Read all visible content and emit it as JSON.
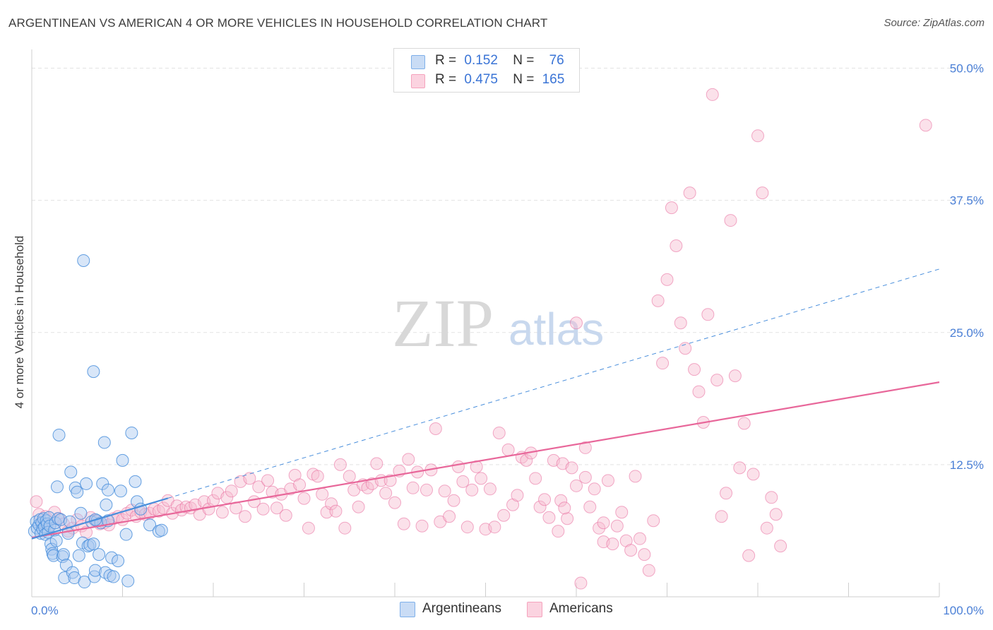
{
  "title": "ARGENTINEAN VS AMERICAN 4 OR MORE VEHICLES IN HOUSEHOLD CORRELATION CHART",
  "source": "Source: ZipAtlas.com",
  "watermark": {
    "zip": "ZIP",
    "atlas": "atlas"
  },
  "legend": {
    "rows": [
      {
        "r_label": "R =",
        "r_value": "0.152",
        "n_label": "N =",
        "n_value": "76",
        "color": "#7fb0ea"
      },
      {
        "r_label": "R =",
        "r_value": "0.475",
        "n_label": "N =",
        "n_value": "165",
        "color": "#f5a3bd"
      }
    ]
  },
  "bottom_legend": {
    "argentineans": "Argentineans",
    "americans": "Americans"
  },
  "chart_data": {
    "type": "scatter",
    "title": "ARGENTINEAN VS AMERICAN 4 OR MORE VEHICLES IN HOUSEHOLD CORRELATION CHART",
    "ylabel": "4 or more Vehicles in Household",
    "xlabel": "",
    "x_tick_labels": [
      "0.0%",
      "100.0%"
    ],
    "y_tick_labels": [
      "12.5%",
      "25.0%",
      "37.5%",
      "50.0%"
    ],
    "y_ticks": [
      12.5,
      25.0,
      37.5,
      50.0
    ],
    "xlim": [
      0,
      100
    ],
    "ylim": [
      0,
      52
    ],
    "grid": true,
    "legend_position": "top-center",
    "series": [
      {
        "name": "Argentineans",
        "color": "#4a8fdc",
        "fill": "#a9c8f0",
        "r": 0.152,
        "n": 76,
        "trend": {
          "x0": 0,
          "y0": 5.5,
          "x1": 100,
          "y1": 31.0,
          "solid_until_x": 15
        },
        "points": [
          [
            0.3,
            6.2
          ],
          [
            0.5,
            7.1
          ],
          [
            0.6,
            6.5
          ],
          [
            0.8,
            6.8
          ],
          [
            0.9,
            7.3
          ],
          [
            1.0,
            6.0
          ],
          [
            1.1,
            7.0
          ],
          [
            1.2,
            6.4
          ],
          [
            1.3,
            7.4
          ],
          [
            1.4,
            6.6
          ],
          [
            1.5,
            5.9
          ],
          [
            1.6,
            7.2
          ],
          [
            1.7,
            6.9
          ],
          [
            1.8,
            6.1
          ],
          [
            1.9,
            7.5
          ],
          [
            2.0,
            6.7
          ],
          [
            2.1,
            5.0
          ],
          [
            2.2,
            4.5
          ],
          [
            2.3,
            4.1
          ],
          [
            2.4,
            3.9
          ],
          [
            2.5,
            6.3
          ],
          [
            2.6,
            7.0
          ],
          [
            2.7,
            5.3
          ],
          [
            2.8,
            10.4
          ],
          [
            2.9,
            7.4
          ],
          [
            3.0,
            15.3
          ],
          [
            3.2,
            7.3
          ],
          [
            3.4,
            3.8
          ],
          [
            3.5,
            4.0
          ],
          [
            3.6,
            1.8
          ],
          [
            3.8,
            3.0
          ],
          [
            4.0,
            6.0
          ],
          [
            4.2,
            7.1
          ],
          [
            4.3,
            11.8
          ],
          [
            4.5,
            2.3
          ],
          [
            4.7,
            1.8
          ],
          [
            4.8,
            10.3
          ],
          [
            5.0,
            9.9
          ],
          [
            5.2,
            3.9
          ],
          [
            5.4,
            7.9
          ],
          [
            5.6,
            5.1
          ],
          [
            5.8,
            1.4
          ],
          [
            6.0,
            10.7
          ],
          [
            6.2,
            4.8
          ],
          [
            6.4,
            4.9
          ],
          [
            6.6,
            7.1
          ],
          [
            6.8,
            5.0
          ],
          [
            6.9,
            1.9
          ],
          [
            7.0,
            2.5
          ],
          [
            7.2,
            7.2
          ],
          [
            7.4,
            4.0
          ],
          [
            7.6,
            7.0
          ],
          [
            7.8,
            10.7
          ],
          [
            8.0,
            14.6
          ],
          [
            8.1,
            2.3
          ],
          [
            8.2,
            8.7
          ],
          [
            8.4,
            10.1
          ],
          [
            8.6,
            2.0
          ],
          [
            8.8,
            3.7
          ],
          [
            9.0,
            1.9
          ],
          [
            5.7,
            31.8
          ],
          [
            6.8,
            21.3
          ],
          [
            7.0,
            7.3
          ],
          [
            9.5,
            3.4
          ],
          [
            9.8,
            10.0
          ],
          [
            10.0,
            12.9
          ],
          [
            10.4,
            5.9
          ],
          [
            10.6,
            1.5
          ],
          [
            11.0,
            15.5
          ],
          [
            11.4,
            10.9
          ],
          [
            11.6,
            9.0
          ],
          [
            12.0,
            8.3
          ],
          [
            13.0,
            6.8
          ],
          [
            14.0,
            6.2
          ],
          [
            14.3,
            6.3
          ],
          [
            8.4,
            7.2
          ]
        ]
      },
      {
        "name": "Americans",
        "color": "#e8679a",
        "fill": "#f7bcd0",
        "r": 0.475,
        "n": 165,
        "trend": {
          "x0": 0,
          "y0": 5.6,
          "x1": 100,
          "y1": 20.3
        },
        "points": [
          [
            0.5,
            9.0
          ],
          [
            0.8,
            7.8
          ],
          [
            1.2,
            7.0
          ],
          [
            1.5,
            7.6
          ],
          [
            2.0,
            6.8
          ],
          [
            2.5,
            8.0
          ],
          [
            3.0,
            7.4
          ],
          [
            3.5,
            6.9
          ],
          [
            4.0,
            6.2
          ],
          [
            4.5,
            6.5
          ],
          [
            5.0,
            7.3
          ],
          [
            5.5,
            6.7
          ],
          [
            6.0,
            6.1
          ],
          [
            6.5,
            7.5
          ],
          [
            7.0,
            7.2
          ],
          [
            7.5,
            6.9
          ],
          [
            8.0,
            7.0
          ],
          [
            8.5,
            6.8
          ],
          [
            9.0,
            7.4
          ],
          [
            9.5,
            7.6
          ],
          [
            10.0,
            7.3
          ],
          [
            10.5,
            7.9
          ],
          [
            11.0,
            8.2
          ],
          [
            11.5,
            7.6
          ],
          [
            12.0,
            8.0
          ],
          [
            12.5,
            7.8
          ],
          [
            13.0,
            7.9
          ],
          [
            13.5,
            8.3
          ],
          [
            14.0,
            8.1
          ],
          [
            14.5,
            8.4
          ],
          [
            15.0,
            9.1
          ],
          [
            15.5,
            7.9
          ],
          [
            16.0,
            8.6
          ],
          [
            16.5,
            8.2
          ],
          [
            17.0,
            8.5
          ],
          [
            17.5,
            8.4
          ],
          [
            18.0,
            8.7
          ],
          [
            18.5,
            7.8
          ],
          [
            19.0,
            9.0
          ],
          [
            19.5,
            8.3
          ],
          [
            20.0,
            9.1
          ],
          [
            20.5,
            9.8
          ],
          [
            21.0,
            8.0
          ],
          [
            21.5,
            9.4
          ],
          [
            22.0,
            10.0
          ],
          [
            22.5,
            8.4
          ],
          [
            23.0,
            10.9
          ],
          [
            23.5,
            7.6
          ],
          [
            24.0,
            11.2
          ],
          [
            24.5,
            9.0
          ],
          [
            25.0,
            10.4
          ],
          [
            25.5,
            8.3
          ],
          [
            26.0,
            11.0
          ],
          [
            26.5,
            9.9
          ],
          [
            27.0,
            8.4
          ],
          [
            27.5,
            9.7
          ],
          [
            28.0,
            7.7
          ],
          [
            28.5,
            10.2
          ],
          [
            29.0,
            11.5
          ],
          [
            29.5,
            10.6
          ],
          [
            30.0,
            9.3
          ],
          [
            30.5,
            6.5
          ],
          [
            31.0,
            11.6
          ],
          [
            31.5,
            11.4
          ],
          [
            32.0,
            9.7
          ],
          [
            32.5,
            8.0
          ],
          [
            33.0,
            8.8
          ],
          [
            33.5,
            8.1
          ],
          [
            34.0,
            12.5
          ],
          [
            34.5,
            6.5
          ],
          [
            35.0,
            11.4
          ],
          [
            35.5,
            10.1
          ],
          [
            36.0,
            8.5
          ],
          [
            36.5,
            10.6
          ],
          [
            37.0,
            10.3
          ],
          [
            37.5,
            10.7
          ],
          [
            38.0,
            12.6
          ],
          [
            38.5,
            11.0
          ],
          [
            39.0,
            9.8
          ],
          [
            39.5,
            11.0
          ],
          [
            40.0,
            8.9
          ],
          [
            40.5,
            11.9
          ],
          [
            41.0,
            6.9
          ],
          [
            41.5,
            13.0
          ],
          [
            42.0,
            10.3
          ],
          [
            42.5,
            11.8
          ],
          [
            43.0,
            6.7
          ],
          [
            43.5,
            10.1
          ],
          [
            44.0,
            12.0
          ],
          [
            44.5,
            15.9
          ],
          [
            45.0,
            7.1
          ],
          [
            45.5,
            10.0
          ],
          [
            46.0,
            7.6
          ],
          [
            46.5,
            9.1
          ],
          [
            47.0,
            12.3
          ],
          [
            47.5,
            10.9
          ],
          [
            48.0,
            6.6
          ],
          [
            48.5,
            10.1
          ],
          [
            49.0,
            12.3
          ],
          [
            49.5,
            11.2
          ],
          [
            50.0,
            6.4
          ],
          [
            50.5,
            10.2
          ],
          [
            51.0,
            6.6
          ],
          [
            51.5,
            15.5
          ],
          [
            52.0,
            7.7
          ],
          [
            52.5,
            13.9
          ],
          [
            53.0,
            8.7
          ],
          [
            53.5,
            9.6
          ],
          [
            54.0,
            13.2
          ],
          [
            54.5,
            12.9
          ],
          [
            55.0,
            13.6
          ],
          [
            55.5,
            11.2
          ],
          [
            56.0,
            8.5
          ],
          [
            56.5,
            9.2
          ],
          [
            57.0,
            7.5
          ],
          [
            57.5,
            12.9
          ],
          [
            58.0,
            6.2
          ],
          [
            58.5,
            12.6
          ],
          [
            59.0,
            7.4
          ],
          [
            59.5,
            12.2
          ],
          [
            60.0,
            10.5
          ],
          [
            60.5,
            1.3
          ],
          [
            61.0,
            11.3
          ],
          [
            61.5,
            8.5
          ],
          [
            62.0,
            10.2
          ],
          [
            62.5,
            6.5
          ],
          [
            63.0,
            5.2
          ],
          [
            63.5,
            11.0
          ],
          [
            64.0,
            5.0
          ],
          [
            64.5,
            6.7
          ],
          [
            65.0,
            8.0
          ],
          [
            65.5,
            5.3
          ],
          [
            66.0,
            4.4
          ],
          [
            66.5,
            11.4
          ],
          [
            67.0,
            5.5
          ],
          [
            67.5,
            4.0
          ],
          [
            68.0,
            2.5
          ],
          [
            68.5,
            7.2
          ],
          [
            69.0,
            28.0
          ],
          [
            69.5,
            22.1
          ],
          [
            70.0,
            30.0
          ],
          [
            70.5,
            36.8
          ],
          [
            71.0,
            33.2
          ],
          [
            71.5,
            25.9
          ],
          [
            72.0,
            23.5
          ],
          [
            72.5,
            38.2
          ],
          [
            73.0,
            21.5
          ],
          [
            73.5,
            19.4
          ],
          [
            74.0,
            16.5
          ],
          [
            74.5,
            26.7
          ],
          [
            75.0,
            47.5
          ],
          [
            75.5,
            20.5
          ],
          [
            76.0,
            7.6
          ],
          [
            76.5,
            9.8
          ],
          [
            77.0,
            35.6
          ],
          [
            77.5,
            20.9
          ],
          [
            78.0,
            12.2
          ],
          [
            78.5,
            16.4
          ],
          [
            79.0,
            3.9
          ],
          [
            79.5,
            11.6
          ],
          [
            80.0,
            43.6
          ],
          [
            80.5,
            38.2
          ],
          [
            81.0,
            6.5
          ],
          [
            81.5,
            9.4
          ],
          [
            82.0,
            7.8
          ],
          [
            82.5,
            4.8
          ],
          [
            98.5,
            44.6
          ],
          [
            60.0,
            25.9
          ],
          [
            63.0,
            7.0
          ],
          [
            61.0,
            14.1
          ],
          [
            58.3,
            9.1
          ],
          [
            58.7,
            8.4
          ]
        ]
      }
    ]
  }
}
